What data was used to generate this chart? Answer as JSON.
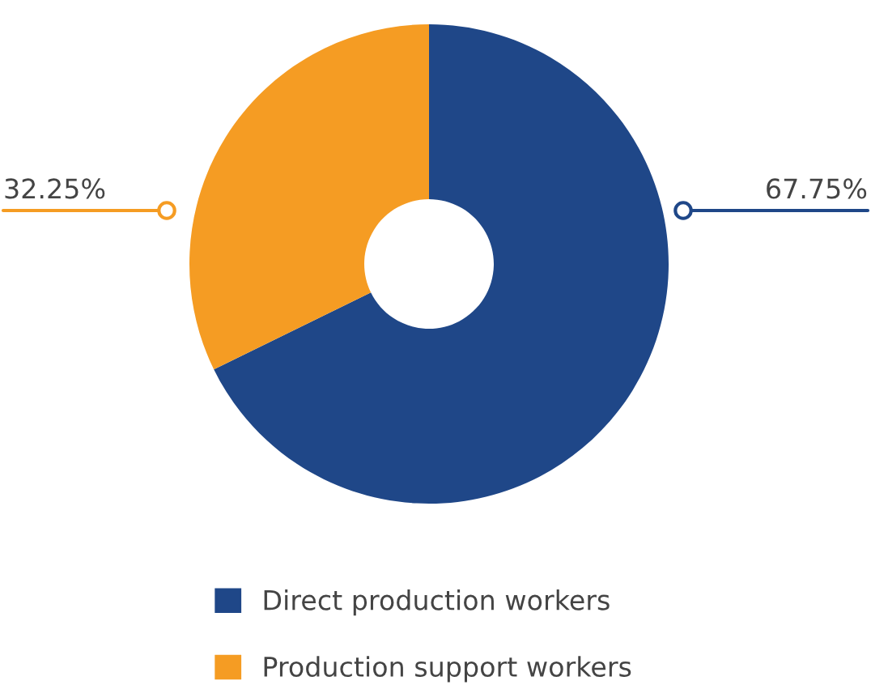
{
  "chart_data": {
    "type": "donut",
    "categories": [
      "Direct production workers",
      "Production support workers"
    ],
    "values": [
      67.75,
      32.25
    ],
    "colors": [
      "#1f4788",
      "#f59c23"
    ],
    "value_labels": [
      "67.75%",
      "32.25%"
    ],
    "legend": "bottom"
  }
}
